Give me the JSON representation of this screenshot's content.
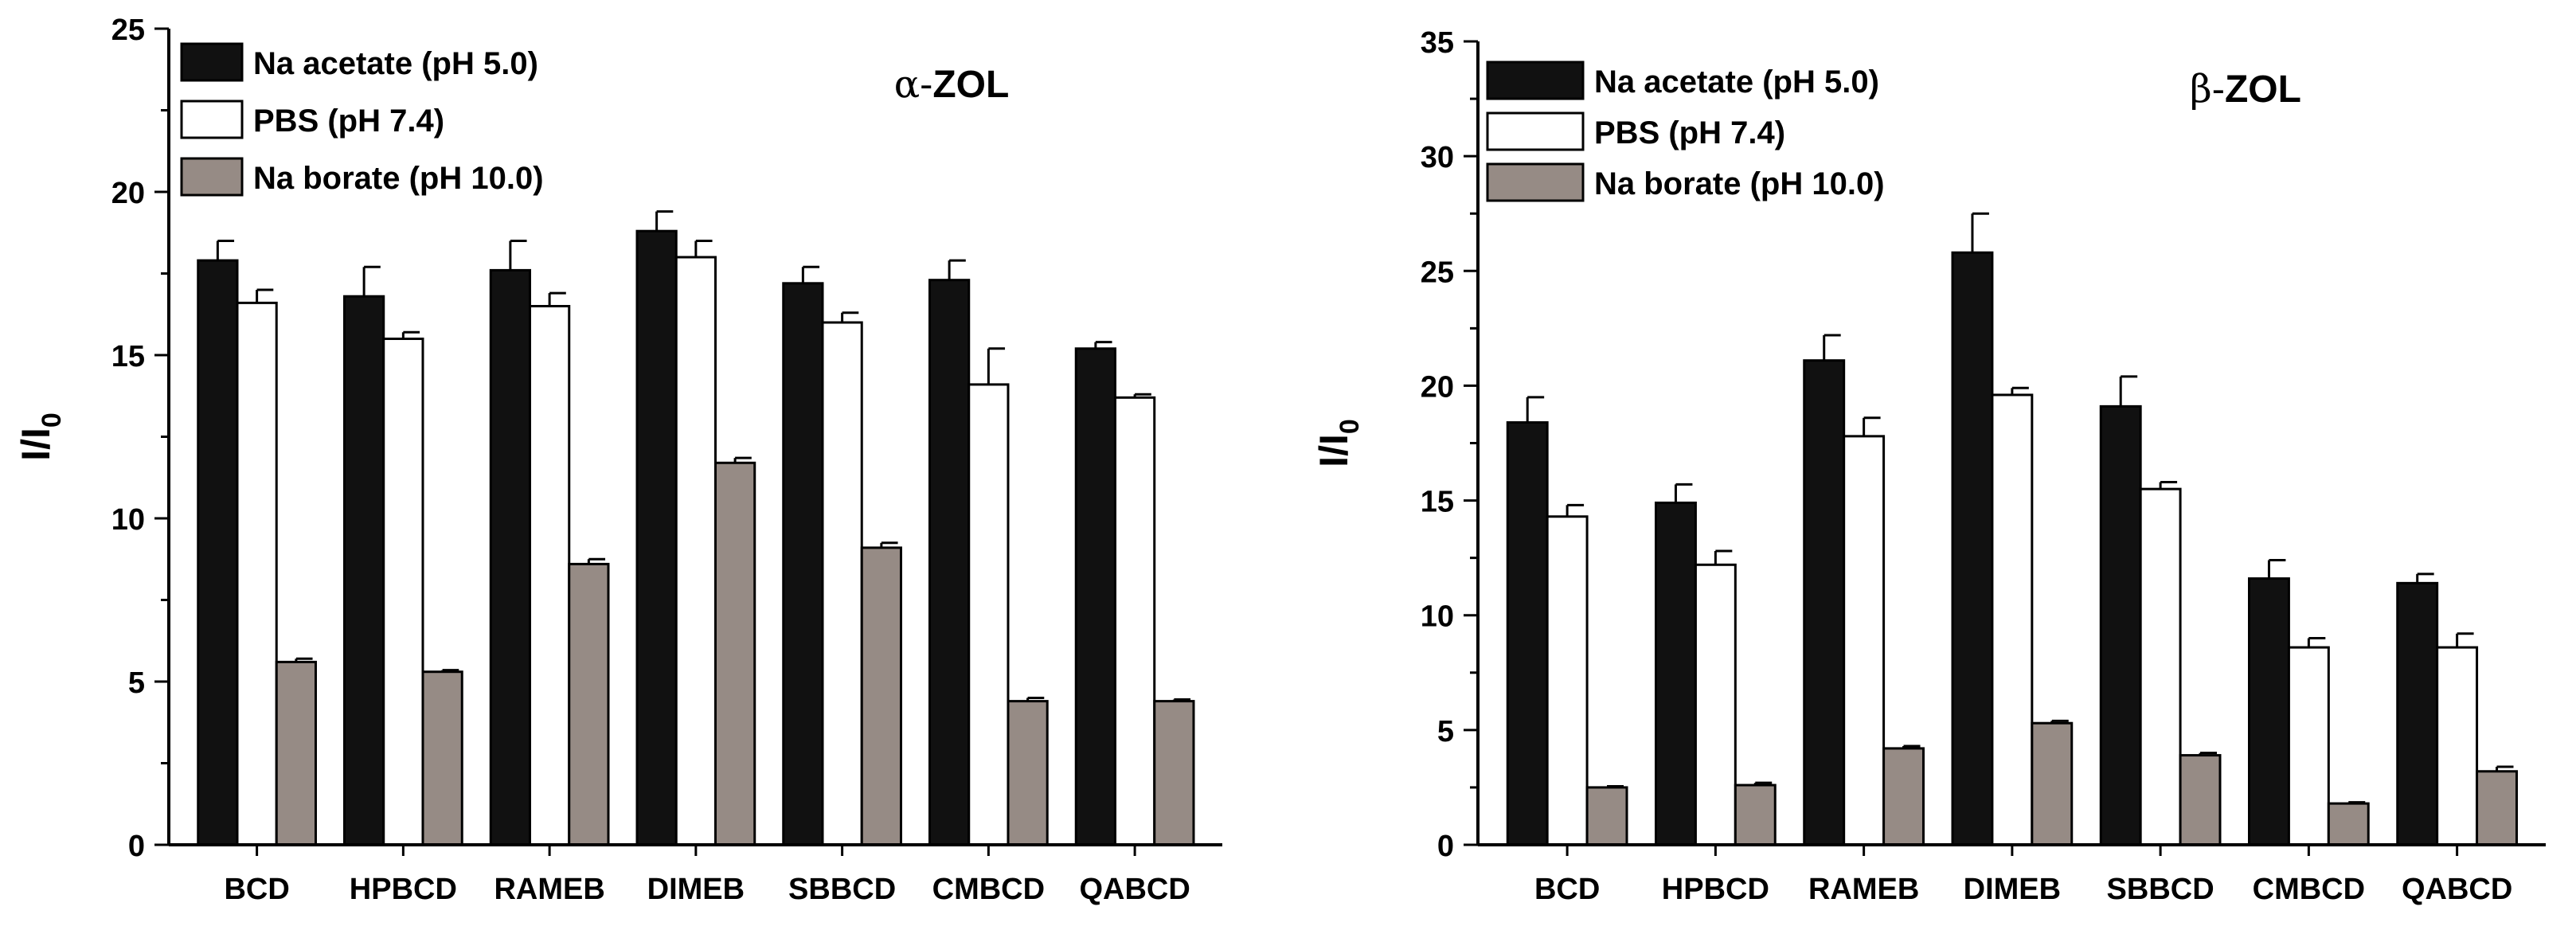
{
  "chart_data": [
    {
      "type": "bar",
      "title": "α-ZOL",
      "title_prefix": "α-",
      "title_main": "ZOL",
      "ylabel": "I/I",
      "ylabel_sub": "0",
      "xlabel": "",
      "ylim": [
        0,
        25
      ],
      "yticks": [
        0,
        5,
        10,
        15,
        20,
        25
      ],
      "minor_tick_step": 2.5,
      "categories": [
        "BCD",
        "HPBCD",
        "RAMEB",
        "DIMEB",
        "SBBCD",
        "CMBCD",
        "QABCD"
      ],
      "series": [
        {
          "name": "Na acetate (pH 5.0)",
          "color": "#111111",
          "values": [
            17.9,
            16.8,
            17.6,
            18.8,
            17.2,
            17.3,
            15.2
          ],
          "errors": [
            0.6,
            0.9,
            0.9,
            0.6,
            0.5,
            0.6,
            0.2
          ]
        },
        {
          "name": "PBS (pH 7.4)",
          "color": "#ffffff",
          "values": [
            16.6,
            15.5,
            16.5,
            18.0,
            16.0,
            14.1,
            13.7
          ],
          "errors": [
            0.4,
            0.2,
            0.4,
            0.5,
            0.3,
            1.1,
            0.1
          ]
        },
        {
          "name": "Na borate (pH 10.0)",
          "color": "#968b85",
          "values": [
            5.6,
            5.3,
            8.6,
            11.7,
            9.1,
            4.4,
            4.4
          ],
          "errors": [
            0.1,
            0.05,
            0.15,
            0.15,
            0.15,
            0.1,
            0.05
          ]
        }
      ],
      "legend_position": "top-left"
    },
    {
      "type": "bar",
      "title": "β-ZOL",
      "title_prefix": "β-",
      "title_main": "ZOL",
      "ylabel": "I/I",
      "ylabel_sub": "0",
      "xlabel": "",
      "ylim": [
        0,
        35
      ],
      "yticks": [
        0,
        5,
        10,
        15,
        20,
        25,
        30,
        35
      ],
      "minor_tick_step": 2.5,
      "categories": [
        "BCD",
        "HPBCD",
        "RAMEB",
        "DIMEB",
        "SBBCD",
        "CMBCD",
        "QABCD"
      ],
      "series": [
        {
          "name": "Na acetate (pH 5.0)",
          "color": "#111111",
          "values": [
            18.4,
            14.9,
            21.1,
            25.8,
            19.1,
            11.6,
            11.4
          ],
          "errors": [
            1.1,
            0.8,
            1.1,
            1.7,
            1.3,
            0.8,
            0.4
          ]
        },
        {
          "name": "PBS (pH 7.4)",
          "color": "#ffffff",
          "values": [
            14.3,
            12.2,
            17.8,
            19.6,
            15.5,
            8.6,
            8.6
          ],
          "errors": [
            0.5,
            0.6,
            0.8,
            0.3,
            0.3,
            0.4,
            0.6
          ]
        },
        {
          "name": "Na borate (pH 10.0)",
          "color": "#968b85",
          "values": [
            2.5,
            2.6,
            4.2,
            5.3,
            3.9,
            1.8,
            3.2
          ],
          "errors": [
            0.05,
            0.1,
            0.1,
            0.1,
            0.1,
            0.05,
            0.2
          ]
        }
      ],
      "legend_position": "top-left"
    }
  ]
}
